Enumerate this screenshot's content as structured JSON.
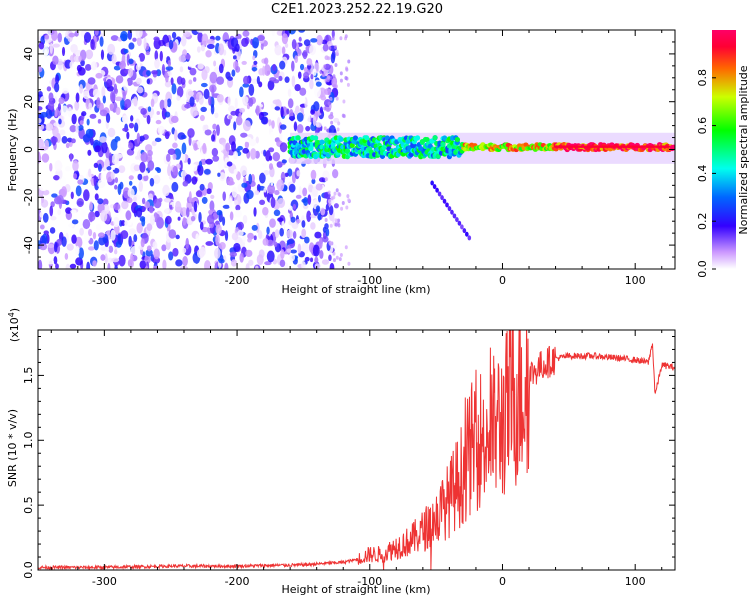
{
  "title": "C2E1.2023.252.22.19.G20",
  "chart_data": [
    {
      "type": "heatmap",
      "title": "C2E1.2023.252.22.19.G20",
      "xlabel": "Height of straight line (km)",
      "ylabel": "Frequency (Hz)",
      "xlim": [
        -350,
        130
      ],
      "ylim": [
        -50,
        50
      ],
      "xticks": [
        -300,
        -200,
        -100,
        0,
        100
      ],
      "yticks": [
        -40,
        -20,
        0,
        20,
        40
      ],
      "colorbar": {
        "label": "Normalized spectral amplitude",
        "range": [
          0.0,
          1.0
        ],
        "ticks": [
          0.0,
          0.2,
          0.4,
          0.6,
          0.8
        ],
        "tick_labels": [
          "0.0",
          "0.2",
          "0.4",
          "0.6",
          "0.8"
        ]
      },
      "features": [
        {
          "region": "noise",
          "x_range": [
            -350,
            -130
          ],
          "freq_range": [
            -50,
            50
          ],
          "amplitude": "low"
        },
        {
          "region": "signal band",
          "x_range": [
            -160,
            130
          ],
          "frequency_center": 1,
          "amplitude": "high"
        },
        {
          "region": "branch",
          "x_range": [
            -55,
            -25
          ],
          "freq_range": [
            -37,
            -12
          ],
          "amplitude": "low"
        }
      ]
    },
    {
      "type": "line",
      "xlabel": "Height of straight line (km)",
      "ylabel": "SNR (10 * v/v)",
      "y_multiplier_label": "(x10^4)",
      "xlim": [
        -350,
        130
      ],
      "ylim": [
        0,
        1.85
      ],
      "xticks": [
        -300,
        -200,
        -100,
        0,
        100
      ],
      "yticks": [
        0.0,
        0.5,
        1.0,
        1.5
      ],
      "ytick_labels": [
        "0.0",
        "0.5",
        "1.0",
        "1.5"
      ],
      "series": [
        {
          "color": "#ee3333",
          "x": [
            -350,
            -300,
            -250,
            -200,
            -150,
            -120,
            -110,
            -100,
            -90,
            -80,
            -70,
            -60,
            -50,
            -40,
            -30,
            -25,
            -20,
            -10,
            0,
            10,
            20,
            30,
            40,
            50,
            60,
            70,
            80,
            90,
            100,
            110,
            113,
            115,
            120,
            130
          ],
          "y": [
            0.02,
            0.02,
            0.03,
            0.03,
            0.04,
            0.06,
            0.08,
            0.12,
            0.12,
            0.18,
            0.22,
            0.3,
            0.4,
            0.55,
            0.75,
            0.9,
            1.0,
            1.05,
            1.15,
            1.35,
            1.5,
            1.58,
            1.63,
            1.65,
            1.65,
            1.65,
            1.64,
            1.63,
            1.62,
            1.6,
            1.75,
            1.35,
            1.58,
            1.56
          ]
        }
      ]
    }
  ]
}
